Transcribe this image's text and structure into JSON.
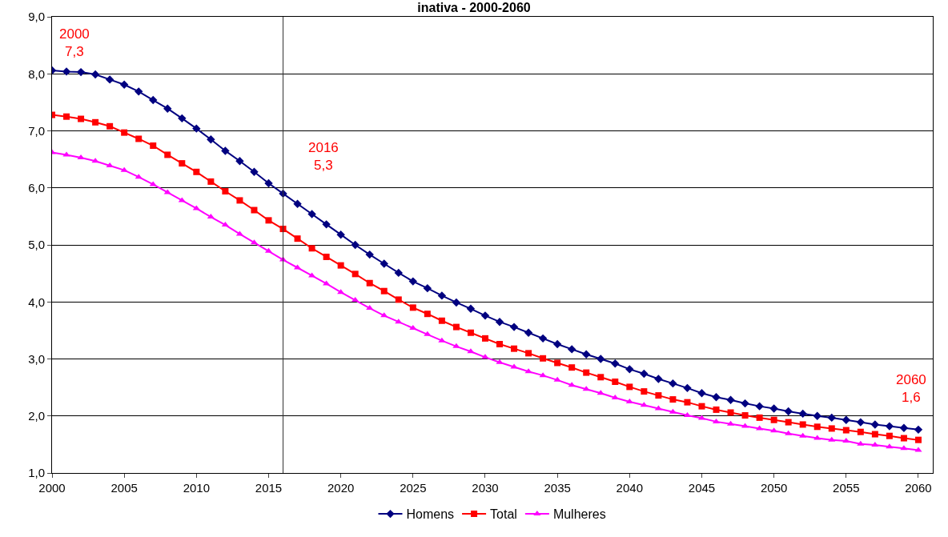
{
  "chart_data": {
    "type": "line",
    "title": "inativa - 2000-2060",
    "x": [
      2000,
      2001,
      2002,
      2003,
      2004,
      2005,
      2006,
      2007,
      2008,
      2009,
      2010,
      2011,
      2012,
      2013,
      2014,
      2015,
      2016,
      2017,
      2018,
      2019,
      2020,
      2021,
      2022,
      2023,
      2024,
      2025,
      2026,
      2027,
      2028,
      2029,
      2030,
      2031,
      2032,
      2033,
      2034,
      2035,
      2036,
      2037,
      2038,
      2039,
      2040,
      2041,
      2042,
      2043,
      2044,
      2045,
      2046,
      2047,
      2048,
      2049,
      2050,
      2051,
      2052,
      2053,
      2054,
      2055,
      2056,
      2057,
      2058,
      2059,
      2060
    ],
    "series": [
      {
        "name": "Homens",
        "color": "#000080",
        "marker": "diamond",
        "values": [
          8.06,
          8.04,
          8.03,
          7.99,
          7.9,
          7.81,
          7.69,
          7.54,
          7.39,
          7.22,
          7.04,
          6.85,
          6.65,
          6.47,
          6.28,
          6.08,
          5.9,
          5.72,
          5.54,
          5.36,
          5.18,
          5.0,
          4.83,
          4.67,
          4.51,
          4.36,
          4.24,
          4.11,
          3.99,
          3.88,
          3.76,
          3.65,
          3.56,
          3.46,
          3.36,
          3.26,
          3.17,
          3.08,
          3.0,
          2.92,
          2.82,
          2.74,
          2.65,
          2.57,
          2.49,
          2.4,
          2.33,
          2.28,
          2.22,
          2.17,
          2.13,
          2.08,
          2.04,
          2.0,
          1.97,
          1.93,
          1.89,
          1.85,
          1.82,
          1.79,
          1.76
        ]
      },
      {
        "name": "Total",
        "color": "#ff0000",
        "marker": "square",
        "values": [
          7.28,
          7.25,
          7.21,
          7.15,
          7.08,
          6.97,
          6.86,
          6.74,
          6.58,
          6.43,
          6.28,
          6.11,
          5.94,
          5.78,
          5.61,
          5.43,
          5.28,
          5.11,
          4.94,
          4.79,
          4.64,
          4.49,
          4.33,
          4.19,
          4.04,
          3.9,
          3.79,
          3.67,
          3.56,
          3.46,
          3.36,
          3.26,
          3.18,
          3.1,
          3.01,
          2.93,
          2.85,
          2.76,
          2.68,
          2.6,
          2.51,
          2.43,
          2.36,
          2.29,
          2.24,
          2.17,
          2.11,
          2.06,
          2.01,
          1.97,
          1.93,
          1.89,
          1.85,
          1.81,
          1.78,
          1.75,
          1.72,
          1.68,
          1.65,
          1.61,
          1.58
        ]
      },
      {
        "name": "Mulheres",
        "color": "#ff00ff",
        "marker": "triangle",
        "values": [
          6.62,
          6.58,
          6.53,
          6.47,
          6.39,
          6.31,
          6.19,
          6.06,
          5.92,
          5.78,
          5.64,
          5.49,
          5.35,
          5.19,
          5.04,
          4.89,
          4.74,
          4.6,
          4.46,
          4.32,
          4.17,
          4.03,
          3.89,
          3.76,
          3.65,
          3.54,
          3.43,
          3.32,
          3.22,
          3.13,
          3.03,
          2.94,
          2.86,
          2.78,
          2.71,
          2.63,
          2.54,
          2.47,
          2.4,
          2.32,
          2.25,
          2.19,
          2.13,
          2.07,
          2.01,
          1.96,
          1.9,
          1.86,
          1.82,
          1.78,
          1.74,
          1.69,
          1.65,
          1.61,
          1.58,
          1.56,
          1.51,
          1.49,
          1.46,
          1.43,
          1.4
        ]
      }
    ],
    "annotations": [
      "2000\n7,3",
      "2016\n5,3",
      "2060\n1,6"
    ],
    "ref_lines": [
      {
        "axis": "x",
        "value": 2016,
        "color": "#333333"
      }
    ],
    "xlim": [
      2000,
      2061
    ],
    "xticks": [
      2000,
      2005,
      2010,
      2015,
      2020,
      2025,
      2030,
      2035,
      2040,
      2045,
      2050,
      2055,
      2060
    ],
    "ylim": [
      1,
      9
    ],
    "yticks": [
      {
        "value": 1,
        "label": "1,0"
      },
      {
        "value": 2,
        "label": "2,0"
      },
      {
        "value": 3,
        "label": "3,0"
      },
      {
        "value": 4,
        "label": "4,0"
      },
      {
        "value": 5,
        "label": "5,0"
      },
      {
        "value": 6,
        "label": "6,0"
      },
      {
        "value": 7,
        "label": "7,0"
      },
      {
        "value": 8,
        "label": "8,0"
      },
      {
        "value": 9,
        "label": "9,0"
      }
    ],
    "grid": "y",
    "legend": "bottom"
  }
}
